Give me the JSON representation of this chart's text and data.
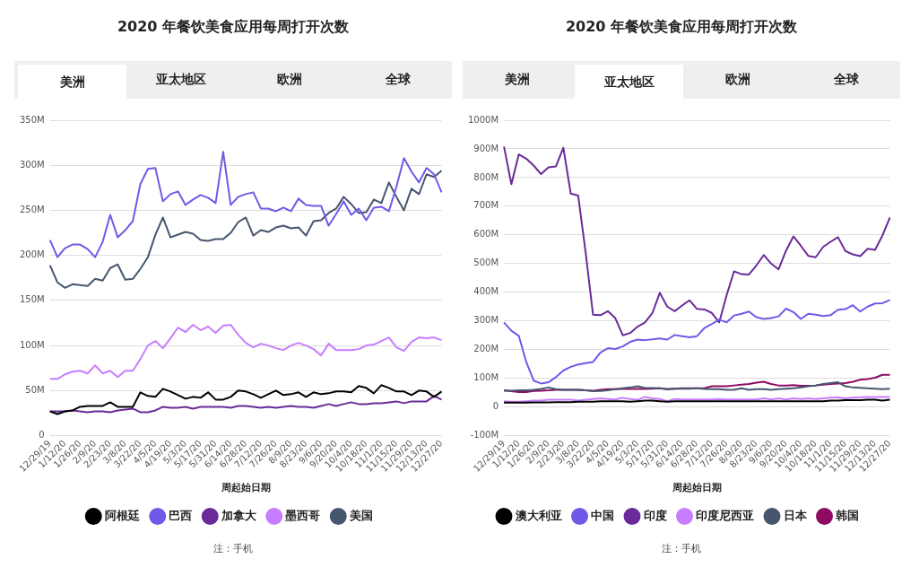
{
  "chart_data": [
    {
      "type": "line",
      "title": "2020 年餐饮美食应用每周打开次数",
      "xlabel": "周起始日期",
      "categories": [
        "12/29/19",
        null,
        "1/12/20",
        null,
        "1/26/20",
        null,
        "2/9/20",
        null,
        "2/23/20",
        null,
        "3/8/20",
        null,
        "3/22/20",
        null,
        "4/5/20",
        null,
        "4/19/20",
        null,
        "5/3/20",
        null,
        "5/17/20",
        null,
        "5/31/20",
        null,
        "6/14/20",
        null,
        "6/28/20",
        null,
        "7/12/20",
        null,
        "7/26/20",
        null,
        "8/9/20",
        null,
        "8/23/20",
        null,
        "9/6/20",
        null,
        "9/20/20",
        null,
        "10/4/20",
        null,
        "10/18/20",
        null,
        "11/1/20",
        null,
        "11/15/20",
        null,
        "11/29/20",
        null,
        "12/13/20",
        null,
        "12/27/20"
      ],
      "series": [
        {
          "name": "阿根廷",
          "color": "#000000",
          "values": [
            27,
            24,
            27,
            28,
            32,
            33,
            33,
            33,
            37,
            32,
            32,
            32,
            48,
            44,
            43,
            52,
            49,
            45,
            41,
            43,
            42,
            48,
            40,
            40,
            43,
            50,
            49,
            46,
            42,
            46,
            50,
            45,
            46,
            48,
            43,
            48,
            46,
            47,
            49,
            49,
            48,
            55,
            53,
            47,
            56,
            53,
            49,
            49,
            45,
            50,
            49,
            43,
            49
          ]
        },
        {
          "name": "巴西",
          "color": "#7059e8",
          "values": [
            217,
            198,
            208,
            212,
            212,
            207,
            198,
            215,
            245,
            220,
            228,
            238,
            279,
            296,
            297,
            260,
            268,
            271,
            256,
            262,
            267,
            264,
            258,
            315,
            256,
            265,
            268,
            270,
            252,
            252,
            249,
            253,
            249,
            263,
            256,
            255,
            255,
            233,
            246,
            260,
            245,
            252,
            239,
            253,
            254,
            249,
            276,
            308,
            293,
            281,
            297,
            290,
            270
          ]
        },
        {
          "name": "加拿大",
          "color": "#6b2a99",
          "values": [
            27,
            27,
            27,
            28,
            27,
            26,
            27,
            27,
            26,
            28,
            29,
            30,
            26,
            26,
            28,
            32,
            31,
            31,
            32,
            30,
            32,
            32,
            32,
            32,
            31,
            33,
            33,
            32,
            31,
            32,
            31,
            32,
            33,
            32,
            32,
            31,
            33,
            35,
            33,
            35,
            37,
            35,
            35,
            36,
            36,
            37,
            38,
            36,
            38,
            38,
            38,
            44,
            40
          ]
        },
        {
          "name": "墨西哥",
          "color": "#c77dff",
          "values": [
            63,
            63,
            68,
            71,
            72,
            69,
            78,
            69,
            72,
            65,
            72,
            72,
            85,
            100,
            105,
            97,
            108,
            120,
            115,
            123,
            117,
            121,
            114,
            122,
            123,
            112,
            103,
            98,
            102,
            100,
            97,
            95,
            100,
            103,
            100,
            96,
            89,
            102,
            95,
            95,
            95,
            96,
            100,
            101,
            105,
            109,
            98,
            94,
            104,
            109,
            108,
            109,
            106
          ]
        },
        {
          "name": "美国",
          "color": "#46566e",
          "values": [
            189,
            170,
            164,
            168,
            167,
            166,
            174,
            172,
            186,
            190,
            173,
            174,
            185,
            198,
            223,
            242,
            220,
            223,
            226,
            224,
            217,
            216,
            218,
            218,
            225,
            237,
            242,
            222,
            228,
            226,
            231,
            233,
            230,
            231,
            222,
            238,
            239,
            247,
            252,
            265,
            257,
            247,
            248,
            262,
            258,
            281,
            265,
            250,
            274,
            268,
            290,
            287,
            294
          ]
        }
      ],
      "ylim": [
        0,
        350
      ],
      "yticks": [
        {
          "value": 0,
          "label": "0"
        },
        {
          "value": 50,
          "label": "50M"
        },
        {
          "value": 100,
          "label": "100M"
        },
        {
          "value": 150,
          "label": "150M"
        },
        {
          "value": 200,
          "label": "200M"
        },
        {
          "value": 250,
          "label": "250M"
        },
        {
          "value": 300,
          "label": "300M"
        },
        {
          "value": 350,
          "label": "350M"
        }
      ],
      "grid": "y",
      "legend": "bottom",
      "marker": "none",
      "line_style": "solid",
      "annotations": [
        "美洲",
        "亚太地区",
        "欧洲",
        "全球",
        "注：手机"
      ]
    },
    {
      "type": "line",
      "title": "2020 年餐饮美食应用每周打开次数",
      "xlabel": "周起始日期",
      "categories": [
        "12/29/19",
        null,
        "1/12/20",
        null,
        "1/26/20",
        null,
        "2/9/20",
        null,
        "2/23/20",
        null,
        "3/8/20",
        null,
        "3/22/20",
        null,
        "4/5/20",
        null,
        "4/19/20",
        null,
        "5/3/20",
        null,
        "5/17/20",
        null,
        "5/31/20",
        null,
        "6/14/20",
        null,
        "6/28/20",
        null,
        "7/12/20",
        null,
        "7/26/20",
        null,
        "8/9/20",
        null,
        "8/23/20",
        null,
        "9/6/20",
        null,
        "9/20/20",
        null,
        "10/4/20",
        null,
        "10/18/20",
        null,
        "11/1/20",
        null,
        "11/15/20",
        null,
        "11/29/20",
        null,
        "12/13/20",
        null,
        "12/27/20"
      ],
      "series": [
        {
          "name": "澳大利亚",
          "color": "#000000",
          "values": [
            15,
            15,
            15,
            15,
            16,
            16,
            16,
            17,
            17,
            17,
            18,
            18,
            18,
            20,
            20,
            20,
            20,
            18,
            20,
            22,
            22,
            20,
            18,
            20,
            20,
            20,
            20,
            20,
            20,
            20,
            20,
            20,
            20,
            20,
            20,
            20,
            20,
            20,
            20,
            20,
            20,
            20,
            20,
            20,
            22,
            22,
            24,
            24,
            24,
            25,
            25,
            22,
            25
          ]
        },
        {
          "name": "中国",
          "color": "#7059e8",
          "values": [
            295,
            266,
            248,
            157,
            92,
            82,
            86,
            104,
            127,
            140,
            148,
            153,
            157,
            190,
            205,
            202,
            211,
            227,
            235,
            233,
            236,
            239,
            235,
            251,
            247,
            243,
            247,
            275,
            289,
            305,
            295,
            319,
            325,
            333,
            313,
            307,
            310,
            316,
            343,
            331,
            307,
            325,
            322,
            317,
            320,
            339,
            341,
            355,
            333,
            350,
            361,
            362,
            373
          ]
        },
        {
          "name": "印度",
          "color": "#6b2a99",
          "values": [
            908,
            777,
            881,
            866,
            842,
            812,
            836,
            839,
            904,
            744,
            737,
            540,
            322,
            320,
            334,
            310,
            250,
            258,
            280,
            295,
            328,
            398,
            350,
            334,
            354,
            372,
            342,
            340,
            328,
            295,
            390,
            473,
            463,
            462,
            493,
            530,
            500,
            480,
            545,
            595,
            562,
            527,
            522,
            558,
            576,
            592,
            544,
            532,
            526,
            552,
            548,
            598,
            661
          ]
        },
        {
          "name": "印度尼西亚",
          "color": "#c77dff",
          "values": [
            20,
            18,
            18,
            20,
            22,
            22,
            25,
            25,
            25,
            25,
            22,
            25,
            28,
            30,
            28,
            26,
            32,
            28,
            25,
            35,
            30,
            28,
            20,
            28,
            26,
            26,
            26,
            26,
            26,
            28,
            26,
            26,
            26,
            26,
            26,
            30,
            26,
            30,
            26,
            30,
            28,
            30,
            28,
            30,
            32,
            34,
            30,
            32,
            34,
            35,
            35,
            35,
            35
          ]
        },
        {
          "name": "日本",
          "color": "#46566e",
          "values": [
            57,
            57,
            58,
            58,
            60,
            63,
            68,
            62,
            60,
            60,
            60,
            58,
            55,
            56,
            58,
            62,
            65,
            68,
            72,
            66,
            66,
            65,
            62,
            64,
            64,
            64,
            65,
            63,
            62,
            62,
            60,
            60,
            65,
            60,
            62,
            62,
            60,
            62,
            64,
            65,
            68,
            72,
            75,
            80,
            83,
            86,
            72,
            68,
            67,
            65,
            64,
            62,
            64
          ]
        },
        {
          "name": "韩国",
          "color": "#8e0b63",
          "values": [
            58,
            55,
            52,
            52,
            56,
            57,
            58,
            60,
            60,
            60,
            60,
            58,
            57,
            60,
            62,
            62,
            63,
            63,
            63,
            63,
            64,
            65,
            62,
            64,
            65,
            65,
            65,
            65,
            72,
            72,
            72,
            75,
            78,
            80,
            85,
            88,
            80,
            75,
            75,
            76,
            74,
            74,
            75,
            78,
            80,
            82,
            83,
            88,
            95,
            97,
            102,
            112,
            112
          ]
        }
      ],
      "ylim": [
        -100,
        1000
      ],
      "yticks": [
        {
          "value": -100,
          "label": "-100M"
        },
        {
          "value": 0,
          "label": "0"
        },
        {
          "value": 100,
          "label": "100M"
        },
        {
          "value": 200,
          "label": "200M"
        },
        {
          "value": 300,
          "label": "300M"
        },
        {
          "value": 400,
          "label": "400M"
        },
        {
          "value": 500,
          "label": "500M"
        },
        {
          "value": 600,
          "label": "600M"
        },
        {
          "value": 700,
          "label": "700M"
        },
        {
          "value": 800,
          "label": "800M"
        },
        {
          "value": 900,
          "label": "900M"
        },
        {
          "value": 1000,
          "label": "1000M"
        }
      ],
      "grid": "y",
      "legend": "bottom",
      "marker": "none",
      "line_style": "solid",
      "annotations": [
        "美洲",
        "亚太地区",
        "欧洲",
        "全球",
        "注：手机"
      ]
    }
  ]
}
